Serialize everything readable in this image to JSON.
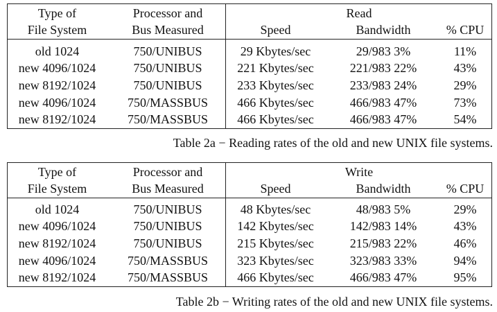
{
  "tables": [
    {
      "mode_header": "Read",
      "headers": {
        "fs_line1": "Type of",
        "fs_line2": "File System",
        "proc_line1": "Processor and",
        "proc_line2": "Bus Measured",
        "speed": "Speed",
        "bandwidth": "Bandwidth",
        "cpu": "% CPU"
      },
      "rows": [
        {
          "fs": "old 1024",
          "proc": "750/UNIBUS",
          "speed": "29 Kbytes/sec",
          "bandwidth": "29/983 3%",
          "cpu": "11%"
        },
        {
          "fs": "new 4096/1024",
          "proc": "750/UNIBUS",
          "speed": "221 Kbytes/sec",
          "bandwidth": "221/983 22%",
          "cpu": "43%"
        },
        {
          "fs": "new 8192/1024",
          "proc": "750/UNIBUS",
          "speed": "233 Kbytes/sec",
          "bandwidth": "233/983 24%",
          "cpu": "29%"
        },
        {
          "fs": "new 4096/1024",
          "proc": "750/MASSBUS",
          "speed": "466 Kbytes/sec",
          "bandwidth": "466/983 47%",
          "cpu": "73%"
        },
        {
          "fs": "new 8192/1024",
          "proc": "750/MASSBUS",
          "speed": "466 Kbytes/sec",
          "bandwidth": "466/983 47%",
          "cpu": "54%"
        }
      ],
      "caption": "Table 2a − Reading rates of the old and new UNIX file systems."
    },
    {
      "mode_header": "Write",
      "headers": {
        "fs_line1": "Type of",
        "fs_line2": "File System",
        "proc_line1": "Processor and",
        "proc_line2": "Bus Measured",
        "speed": "Speed",
        "bandwidth": "Bandwidth",
        "cpu": "% CPU"
      },
      "rows": [
        {
          "fs": "old 1024",
          "proc": "750/UNIBUS",
          "speed": "48 Kbytes/sec",
          "bandwidth": "48/983 5%",
          "cpu": "29%"
        },
        {
          "fs": "new 4096/1024",
          "proc": "750/UNIBUS",
          "speed": "142 Kbytes/sec",
          "bandwidth": "142/983 14%",
          "cpu": "43%"
        },
        {
          "fs": "new 8192/1024",
          "proc": "750/UNIBUS",
          "speed": "215 Kbytes/sec",
          "bandwidth": "215/983 22%",
          "cpu": "46%"
        },
        {
          "fs": "new 4096/1024",
          "proc": "750/MASSBUS",
          "speed": "323 Kbytes/sec",
          "bandwidth": "323/983 33%",
          "cpu": "94%"
        },
        {
          "fs": "new 8192/1024",
          "proc": "750/MASSBUS",
          "speed": "466 Kbytes/sec",
          "bandwidth": "466/983 47%",
          "cpu": "95%"
        }
      ],
      "caption": "Table 2b − Writing rates of the old and new UNIX file systems."
    }
  ]
}
